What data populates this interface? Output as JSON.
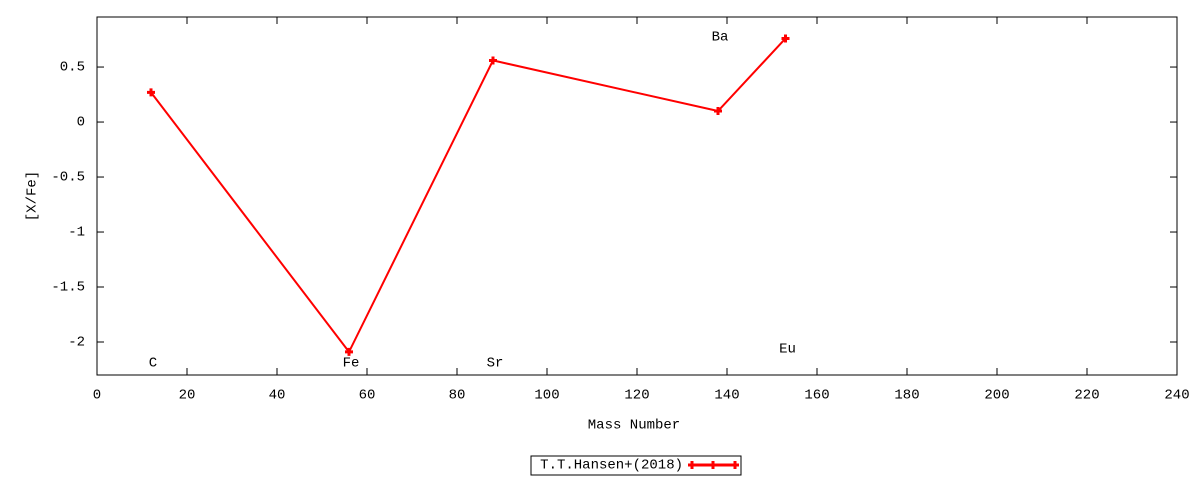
{
  "chart_data": {
    "type": "line",
    "xlabel": "Mass Number",
    "ylabel": "[X/Fe]",
    "x": [
      12,
      56,
      88,
      138,
      153
    ],
    "series": [
      {
        "name": "T.T.Hansen+(2018)",
        "color": "#ff0000",
        "values": [
          0.27,
          -2.09,
          0.56,
          0.1,
          0.76
        ]
      }
    ],
    "annotations": [
      "C",
      "Fe",
      "Sr",
      "Ba",
      "Eu"
    ],
    "xlim": [
      0,
      240
    ],
    "xticks": [
      0,
      20,
      40,
      60,
      80,
      100,
      120,
      140,
      160,
      180,
      200,
      220,
      240
    ],
    "ylim": [
      -2.3,
      0.955
    ],
    "yticks": [
      0.5,
      0,
      -0.5,
      -1,
      -1.5,
      -2
    ],
    "grid": false,
    "legend": "bottom"
  }
}
